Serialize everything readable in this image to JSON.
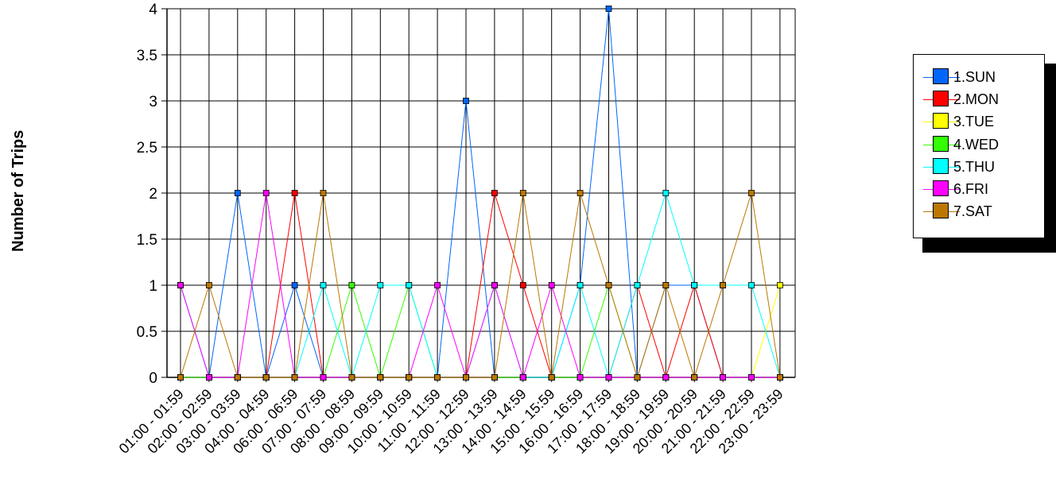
{
  "chart_data": {
    "type": "line",
    "ylabel": "Number of Trips",
    "xlabel": "",
    "ylim": [
      0,
      4
    ],
    "yticks": [
      "0",
      "0.5",
      "1",
      "1.5",
      "2",
      "2.5",
      "3",
      "3.5",
      "4"
    ],
    "grid": true,
    "legend_position": "right",
    "categories": [
      "01:00 - 01:59",
      "02:00 - 02:59",
      "03:00 - 03:59",
      "04:00 - 04:59",
      "06:00 - 06:59",
      "07:00 - 07:59",
      "08:00 - 08:59",
      "09:00 - 09:59",
      "10:00 - 10:59",
      "11:00 - 11:59",
      "12:00 - 12:59",
      "13:00 - 13:59",
      "14:00 - 14:59",
      "15:00 - 15:59",
      "16:00 - 16:59",
      "17:00 - 17:59",
      "18:00 - 18:59",
      "19:00 - 19:59",
      "20:00 - 20:59",
      "21:00 - 21:59",
      "22:00 - 22:59",
      "23:00 - 23:59"
    ],
    "series": [
      {
        "name": "1.SUN",
        "color": "#0066FF",
        "values": [
          1,
          0,
          2,
          0,
          1,
          0,
          0,
          0,
          0,
          0,
          3,
          0,
          0,
          0,
          1,
          4,
          0,
          1,
          1,
          0,
          0,
          0
        ]
      },
      {
        "name": "2.MON",
        "color": "#FF0000",
        "values": [
          0,
          0,
          0,
          0,
          2,
          0,
          0,
          0,
          0,
          0,
          0,
          2,
          1,
          0,
          0,
          0,
          1,
          0,
          1,
          0,
          0,
          0
        ]
      },
      {
        "name": "3.TUE",
        "color": "#FFFF00",
        "values": [
          0,
          0,
          0,
          0,
          0,
          0,
          0,
          0,
          0,
          0,
          0,
          0,
          0,
          0,
          0,
          0,
          0,
          0,
          0,
          0,
          0,
          1
        ]
      },
      {
        "name": "4.WED",
        "color": "#33FF00",
        "values": [
          0,
          0,
          0,
          0,
          0,
          0,
          1,
          0,
          1,
          0,
          0,
          0,
          0,
          0,
          0,
          1,
          0,
          0,
          0,
          0,
          0,
          0
        ]
      },
      {
        "name": "5.THU",
        "color": "#00FFFF",
        "values": [
          1,
          0,
          0,
          0,
          0,
          1,
          0,
          1,
          1,
          0,
          0,
          1,
          0,
          0,
          1,
          0,
          1,
          2,
          1,
          1,
          1,
          0
        ]
      },
      {
        "name": "6.FRI",
        "color": "#FF00FF",
        "values": [
          1,
          0,
          0,
          2,
          0,
          0,
          0,
          0,
          0,
          1,
          0,
          1,
          0,
          1,
          0,
          0,
          0,
          0,
          0,
          0,
          0,
          0
        ]
      },
      {
        "name": "7.SAT",
        "color": "#BB7700",
        "values": [
          0,
          1,
          0,
          0,
          0,
          2,
          0,
          0,
          0,
          0,
          0,
          0,
          2,
          0,
          2,
          1,
          0,
          1,
          0,
          1,
          2,
          0
        ]
      }
    ]
  }
}
